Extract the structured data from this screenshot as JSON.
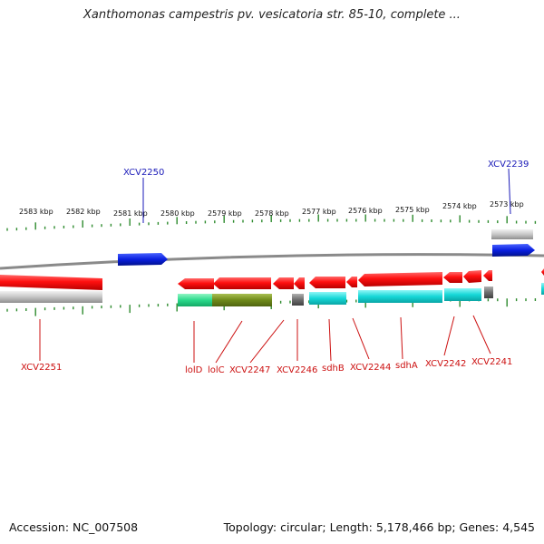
{
  "title": "Xanthomonas campestris pv. vesicatoria str. 85-10, complete ...",
  "footer": {
    "accession": "Accession: NC_007508",
    "summary": "Topology: circular; Length: 5,178,466 bp; Genes: 4,545"
  },
  "colors": {
    "forward_gene": "#0a1fd6",
    "reverse_gene": "#e30b0b",
    "forward_label": "#1a1ab8",
    "reverse_label": "#cc1010",
    "backbone": "#8a8a8a",
    "tick": "#2e8b2e",
    "cds_aqua": "#17d6d6",
    "cds_green": "#2fd98f",
    "cds_olive": "#6f8a1a",
    "cds_gray": "#6e6e6e",
    "cds_lightgray": "#bdbdbd"
  },
  "ticks": [
    "2583 kbp",
    "2582 kbp",
    "2581 kbp",
    "2580 kbp",
    "2579 kbp",
    "2578 kbp",
    "2577 kbp",
    "2576 kbp",
    "2575 kbp",
    "2574 kbp",
    "2573 kbp"
  ],
  "forward_labels": [
    "XCV2250",
    "XCV2239"
  ],
  "reverse_labels": [
    "XCV2251",
    "lolD",
    "lolC",
    "XCV2247",
    "XCV2246",
    "sdhB",
    "XCV2244",
    "sdhA",
    "XCV2242",
    "XCV2241"
  ]
}
